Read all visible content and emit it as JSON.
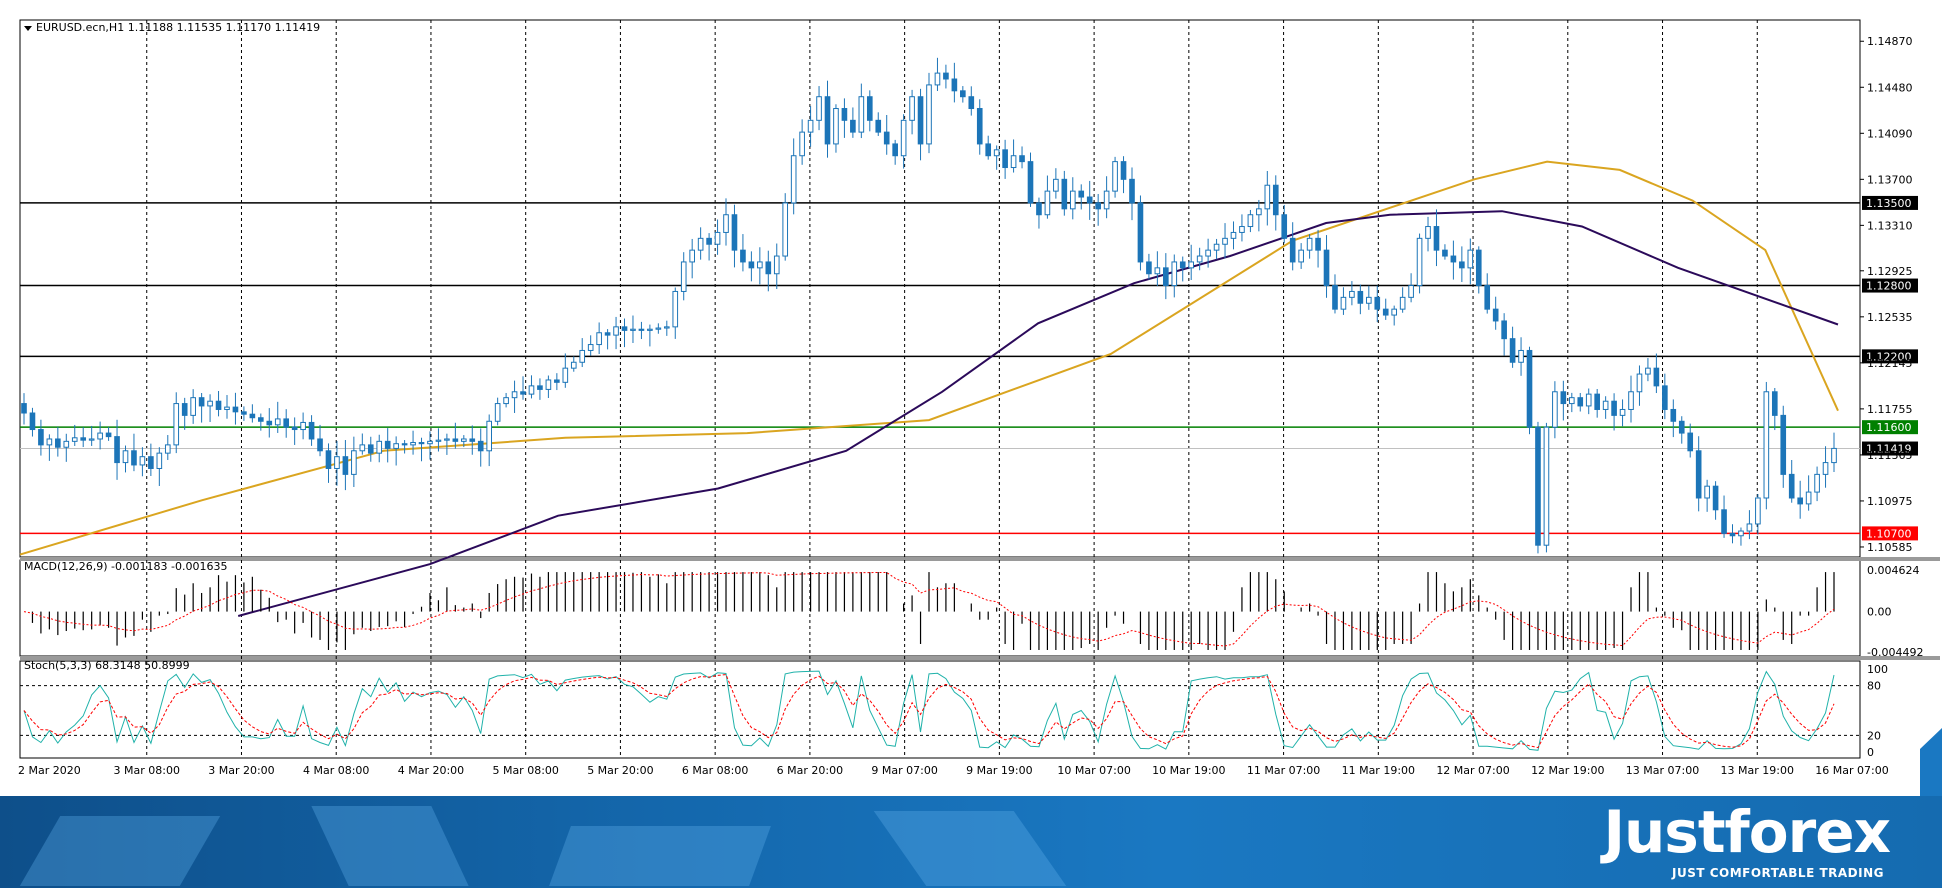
{
  "header": {
    "symbol_line": "EURUSD.ecn,H1  1.11188 1.11535 1.11170 1.11419"
  },
  "chart_data": [
    {
      "type": "candlestick",
      "panel": "price",
      "title": "EURUSD.ecn,H1  1.11188 1.11535 1.11170 1.11419",
      "ylim": [
        1.105,
        1.1505
      ],
      "y_ticks": [
        "1.14870",
        "1.14480",
        "1.14090",
        "1.13700",
        "1.13310",
        "1.12925",
        "1.12535",
        "1.12145",
        "1.11755",
        "1.11365",
        "1.10975",
        "1.10585"
      ],
      "x_labels": [
        "2 Mar 2020",
        "3 Mar 08:00",
        "3 Mar 20:00",
        "4 Mar 08:00",
        "4 Mar 20:00",
        "5 Mar 08:00",
        "5 Mar 20:00",
        "6 Mar 08:00",
        "6 Mar 20:00",
        "9 Mar 07:00",
        "9 Mar 19:00",
        "10 Mar 07:00",
        "10 Mar 19:00",
        "11 Mar 07:00",
        "11 Mar 19:00",
        "12 Mar 07:00",
        "12 Mar 19:00",
        "13 Mar 07:00",
        "13 Mar 19:00",
        "16 Mar 07:00"
      ],
      "levels": [
        {
          "value": 1.135,
          "label": "1.13500",
          "color": "#000000"
        },
        {
          "value": 1.128,
          "label": "1.12800",
          "color": "#000000"
        },
        {
          "value": 1.122,
          "label": "1.12200",
          "color": "#000000"
        },
        {
          "value": 1.116,
          "label": "1.11600",
          "color": "#008000"
        },
        {
          "value": 1.107,
          "label": "1.10700",
          "color": "#ff0000"
        }
      ],
      "current_price": {
        "value": 1.11419,
        "label": "1.11419"
      },
      "closes": [
        1.1172,
        1.1158,
        1.1145,
        1.115,
        1.1143,
        1.1148,
        1.1151,
        1.1149,
        1.115,
        1.1155,
        1.1152,
        1.113,
        1.114,
        1.1128,
        1.1135,
        1.1125,
        1.1138,
        1.1145,
        1.118,
        1.117,
        1.1185,
        1.1178,
        1.1182,
        1.1175,
        1.1177,
        1.1173,
        1.1171,
        1.1168,
        1.1165,
        1.1162,
        1.1167,
        1.116,
        1.1158,
        1.1164,
        1.115,
        1.114,
        1.1125,
        1.1135,
        1.112,
        1.114,
        1.1145,
        1.1138,
        1.1148,
        1.1142,
        1.1146,
        1.1145,
        1.1147,
        1.1146,
        1.1148,
        1.1149,
        1.115,
        1.1148,
        1.115,
        1.1148,
        1.114,
        1.1165,
        1.118,
        1.1185,
        1.119,
        1.1188,
        1.1195,
        1.1192,
        1.12,
        1.1198,
        1.121,
        1.1215,
        1.1225,
        1.123,
        1.124,
        1.1238,
        1.1245,
        1.1242,
        1.1243,
        1.1242,
        1.1243,
        1.1244,
        1.1245,
        1.1275,
        1.13,
        1.131,
        1.132,
        1.1315,
        1.1325,
        1.134,
        1.131,
        1.13,
        1.1295,
        1.13,
        1.129,
        1.1305,
        1.135,
        1.139,
        1.141,
        1.142,
        1.144,
        1.14,
        1.143,
        1.142,
        1.141,
        1.144,
        1.142,
        1.141,
        1.14,
        1.139,
        1.142,
        1.144,
        1.14,
        1.145,
        1.146,
        1.1455,
        1.1445,
        1.144,
        1.143,
        1.14,
        1.139,
        1.1395,
        1.138,
        1.139,
        1.1385,
        1.135,
        1.134,
        1.136,
        1.137,
        1.1345,
        1.136,
        1.1355,
        1.135,
        1.1345,
        1.136,
        1.1385,
        1.137,
        1.135,
        1.13,
        1.129,
        1.1295,
        1.128,
        1.13,
        1.1295,
        1.13,
        1.1305,
        1.131,
        1.1315,
        1.132,
        1.1325,
        1.133,
        1.134,
        1.1345,
        1.1365,
        1.134,
        1.132,
        1.13,
        1.131,
        1.132,
        1.131,
        1.128,
        1.126,
        1.127,
        1.1275,
        1.1265,
        1.127,
        1.126,
        1.1255,
        1.126,
        1.127,
        1.128,
        1.132,
        1.133,
        1.131,
        1.1305,
        1.13,
        1.1295,
        1.131,
        1.128,
        1.126,
        1.125,
        1.1235,
        1.1215,
        1.1225,
        1.116,
        1.106,
        1.116,
        1.119,
        1.118,
        1.1185,
        1.1178,
        1.1188,
        1.1175,
        1.1182,
        1.117,
        1.1175,
        1.119,
        1.1205,
        1.121,
        1.1195,
        1.1175,
        1.1165,
        1.1155,
        1.114,
        1.11,
        1.111,
        1.109,
        1.107,
        1.1068,
        1.1072,
        1.1078,
        1.11,
        1.119,
        1.117,
        1.112,
        1.11,
        1.1095,
        1.1105,
        1.112,
        1.113,
        1.1142
      ],
      "ma_fast": {
        "color": "#daa520",
        "start": 1.1052,
        "points": [
          [
            0,
            1.1052
          ],
          [
            0.1,
            1.1098
          ],
          [
            0.2,
            1.114
          ],
          [
            0.3,
            1.1151
          ],
          [
            0.4,
            1.1155
          ],
          [
            0.5,
            1.1166
          ],
          [
            0.6,
            1.1222
          ],
          [
            0.7,
            1.1318
          ],
          [
            0.8,
            1.137
          ],
          [
            0.84,
            1.1385
          ],
          [
            0.88,
            1.1378
          ],
          [
            0.92,
            1.1352
          ],
          [
            0.96,
            1.131
          ],
          [
            1.0,
            1.1174
          ]
        ]
      },
      "ma_slow": {
        "color": "#2b0a5a",
        "points": [
          [
            0.0,
            1.1
          ],
          [
            0.12,
            1.1044
          ],
          [
            0.2,
            1.1085
          ],
          [
            0.3,
            1.1108
          ],
          [
            0.38,
            1.114
          ],
          [
            0.44,
            1.119
          ],
          [
            0.5,
            1.1248
          ],
          [
            0.56,
            1.1282
          ],
          [
            0.62,
            1.1305
          ],
          [
            0.68,
            1.1333
          ],
          [
            0.72,
            1.134
          ],
          [
            0.79,
            1.1343
          ],
          [
            0.84,
            1.133
          ],
          [
            0.9,
            1.1295
          ],
          [
            1.0,
            1.1247
          ]
        ]
      }
    },
    {
      "type": "bar",
      "panel": "macd",
      "title": "MACD(12,26,9) -0.001183 -0.001635",
      "y_ticks": [
        "0.004624",
        "0.00",
        "-0.004492"
      ],
      "ylim": [
        -0.004492,
        0.004624
      ]
    },
    {
      "type": "line",
      "panel": "stochastic",
      "title": "Stoch(5,3,3) 68.3148 50.8999",
      "y_ticks": [
        "100",
        "80",
        "20",
        "0"
      ],
      "ylim": [
        0,
        100
      ]
    }
  ],
  "branding": {
    "logo": "Justforex",
    "tagline": "JUST COMFORTABLE TRADING"
  },
  "colors": {
    "bull": "#1c75b8",
    "bear": "#1c75b8",
    "macd_bar": "#000000",
    "macd_signal": "#ff0000",
    "stoch_main": "#20b2aa",
    "stoch_signal": "#ff0000"
  }
}
